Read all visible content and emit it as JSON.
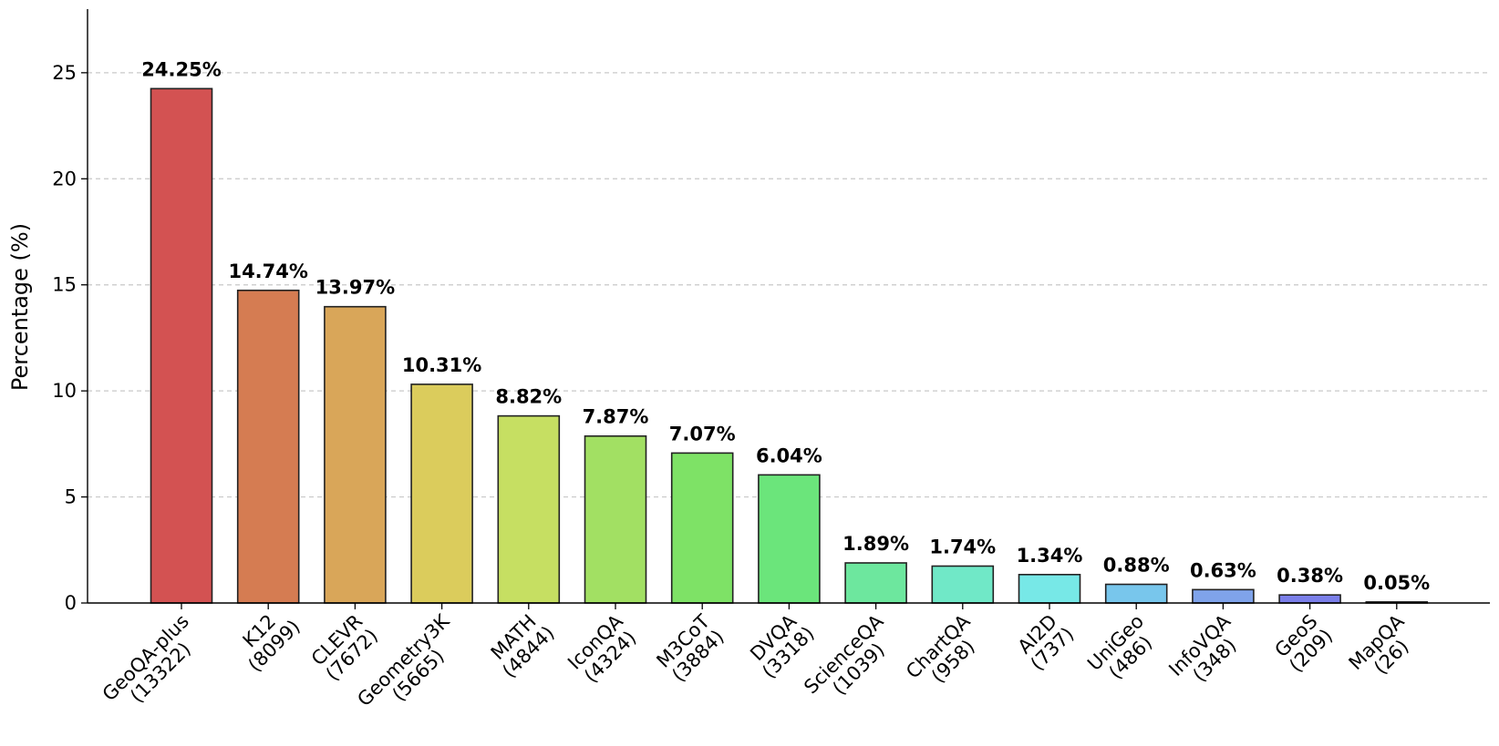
{
  "chart_data": {
    "type": "bar",
    "title": "",
    "xlabel": "",
    "ylabel": "Percentage (%)",
    "ylim": [
      0,
      28
    ],
    "yticks": [
      0,
      5,
      10,
      15,
      20,
      25
    ],
    "grid": "y-dashed",
    "categories": [
      {
        "name": "GeoQA-plus",
        "count": "(13322)"
      },
      {
        "name": "K12",
        "count": "(8099)"
      },
      {
        "name": "CLEVR",
        "count": "(7672)"
      },
      {
        "name": "Geometry3K",
        "count": "(5665)"
      },
      {
        "name": "MATH",
        "count": "(4844)"
      },
      {
        "name": "IconQA",
        "count": "(4324)"
      },
      {
        "name": "M3CoT",
        "count": "(3884)"
      },
      {
        "name": "DVQA",
        "count": "(3318)"
      },
      {
        "name": "ScienceQA",
        "count": "(1039)"
      },
      {
        "name": "ChartQA",
        "count": "(958)"
      },
      {
        "name": "AI2D",
        "count": "(737)"
      },
      {
        "name": "UniGeo",
        "count": "(486)"
      },
      {
        "name": "InfoVQA",
        "count": "(348)"
      },
      {
        "name": "GeoS",
        "count": "(209)"
      },
      {
        "name": "MapQA",
        "count": "(26)"
      }
    ],
    "values": [
      24.25,
      14.74,
      13.97,
      10.31,
      8.82,
      7.87,
      7.07,
      6.04,
      1.89,
      1.74,
      1.34,
      0.88,
      0.63,
      0.38,
      0.05
    ],
    "value_labels": [
      "24.25%",
      "14.74%",
      "13.97%",
      "10.31%",
      "8.82%",
      "7.87%",
      "7.07%",
      "6.04%",
      "1.89%",
      "1.74%",
      "1.34%",
      "0.88%",
      "0.63%",
      "0.38%",
      "0.05%"
    ],
    "colors": [
      "#d35252",
      "#d57c52",
      "#d9a659",
      "#dbcc5c",
      "#c6df62",
      "#a2e063",
      "#7ee266",
      "#6be57b",
      "#6de79e",
      "#70e8c7",
      "#77e8e7",
      "#78c6ec",
      "#7fa3ea",
      "#7b7fe9",
      "#8b7fe9"
    ]
  }
}
